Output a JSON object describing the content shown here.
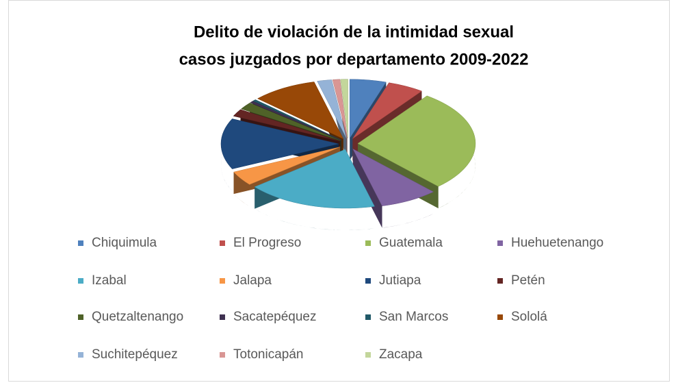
{
  "chart_data": {
    "type": "pie3d",
    "title": [
      "Delito de violación de la intimidad sexual",
      "casos juzgados por departamento 2009-2022"
    ],
    "categories": [
      "Chiquimula",
      "El Progreso",
      "Guatemala",
      "Huehuetenango",
      "Izabal",
      "Jalapa",
      "Jutiapa",
      "Petén",
      "Quetzaltenango",
      "Sacatepéquez",
      "San Marcos",
      "Sololá",
      "Suchitepéquez",
      "Totonicapán",
      "Zacapa"
    ],
    "values": [
      5,
      5,
      28,
      8,
      18,
      4,
      14,
      2,
      2,
      0.5,
      0.5,
      9,
      2,
      1,
      1
    ],
    "colors": [
      "#4f81bd",
      "#c0504d",
      "#9bbb59",
      "#8064a2",
      "#4bacc6",
      "#f79646",
      "#1f497d",
      "#632523",
      "#4f6228",
      "#3f3151",
      "#215968",
      "#984807",
      "#95b3d7",
      "#d99694",
      "#c3d69b"
    ],
    "legend": "bottom"
  }
}
